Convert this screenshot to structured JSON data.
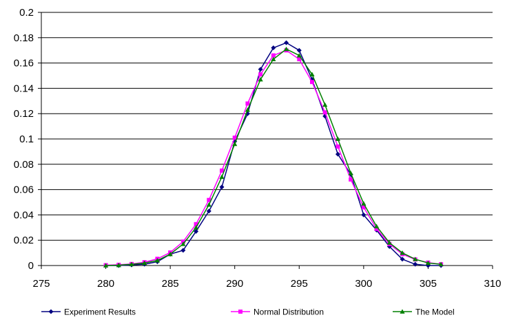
{
  "chart_data": {
    "type": "line",
    "title": "",
    "xlabel": "",
    "ylabel": "",
    "xlim": [
      275,
      310
    ],
    "ylim": [
      0,
      0.2
    ],
    "x_ticks": [
      "275",
      "280",
      "285",
      "290",
      "295",
      "300",
      "305",
      "310"
    ],
    "y_ticks": [
      "0",
      "0.02",
      "0.04",
      "0.06",
      "0.08",
      "0.1",
      "0.12",
      "0.14",
      "0.16",
      "0.18",
      "0.2"
    ],
    "grid": "horizontal",
    "legend_position": "bottom",
    "x": [
      280,
      281,
      282,
      283,
      284,
      285,
      286,
      287,
      288,
      289,
      290,
      291,
      292,
      293,
      294,
      295,
      296,
      297,
      298,
      299,
      300,
      301,
      302,
      303,
      304,
      305,
      306
    ],
    "series": [
      {
        "name": "Experiment Results",
        "color": "#000080",
        "marker": "diamond",
        "values": [
          0.0,
          0.0,
          0.0005,
          0.001,
          0.003,
          0.009,
          0.012,
          0.027,
          0.043,
          0.062,
          0.098,
          0.12,
          0.155,
          0.172,
          0.176,
          0.17,
          0.147,
          0.118,
          0.088,
          0.072,
          0.04,
          0.028,
          0.015,
          0.005,
          0.001,
          0.0,
          0.0
        ]
      },
      {
        "name": "Normal Distribution",
        "color": "#ff00ff",
        "marker": "square",
        "values": [
          0.0003,
          0.0006,
          0.0012,
          0.0026,
          0.0053,
          0.0103,
          0.0189,
          0.0327,
          0.0518,
          0.075,
          0.101,
          0.128,
          0.151,
          0.166,
          0.17,
          0.163,
          0.145,
          0.121,
          0.094,
          0.068,
          0.046,
          0.029,
          0.017,
          0.009,
          0.0048,
          0.0023,
          0.001
        ]
      },
      {
        "name": "The Model",
        "color": "#008000",
        "marker": "triangle",
        "values": [
          0.0,
          0.0003,
          0.001,
          0.002,
          0.004,
          0.009,
          0.017,
          0.03,
          0.048,
          0.07,
          0.096,
          0.123,
          0.147,
          0.163,
          0.171,
          0.166,
          0.151,
          0.127,
          0.1,
          0.073,
          0.049,
          0.031,
          0.018,
          0.01,
          0.005,
          0.002,
          0.001
        ]
      }
    ]
  }
}
